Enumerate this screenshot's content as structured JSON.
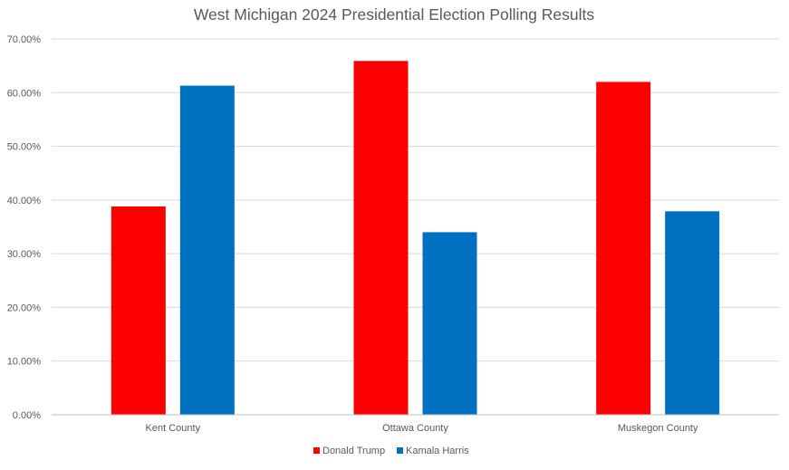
{
  "chart_data": {
    "type": "bar",
    "title": "West Michigan 2024 Presidential Election Polling Results",
    "categories": [
      "Kent County",
      "Ottawa County",
      "Muskegon County"
    ],
    "series": [
      {
        "name": "Donald Trump",
        "color": "#ff0000",
        "values": [
          0.388,
          0.659,
          0.62
        ]
      },
      {
        "name": "Kamala Harris",
        "color": "#0070c0",
        "values": [
          0.613,
          0.34,
          0.379
        ]
      }
    ],
    "ylim": [
      0,
      0.7
    ],
    "y_ticks": [
      0,
      0.1,
      0.2,
      0.3,
      0.4,
      0.5,
      0.6,
      0.7
    ],
    "y_tick_labels": [
      "0.00%",
      "10.00%",
      "20.00%",
      "30.00%",
      "40.00%",
      "50.00%",
      "60.00%",
      "70.00%"
    ],
    "grid": true,
    "legend_position": "bottom"
  }
}
